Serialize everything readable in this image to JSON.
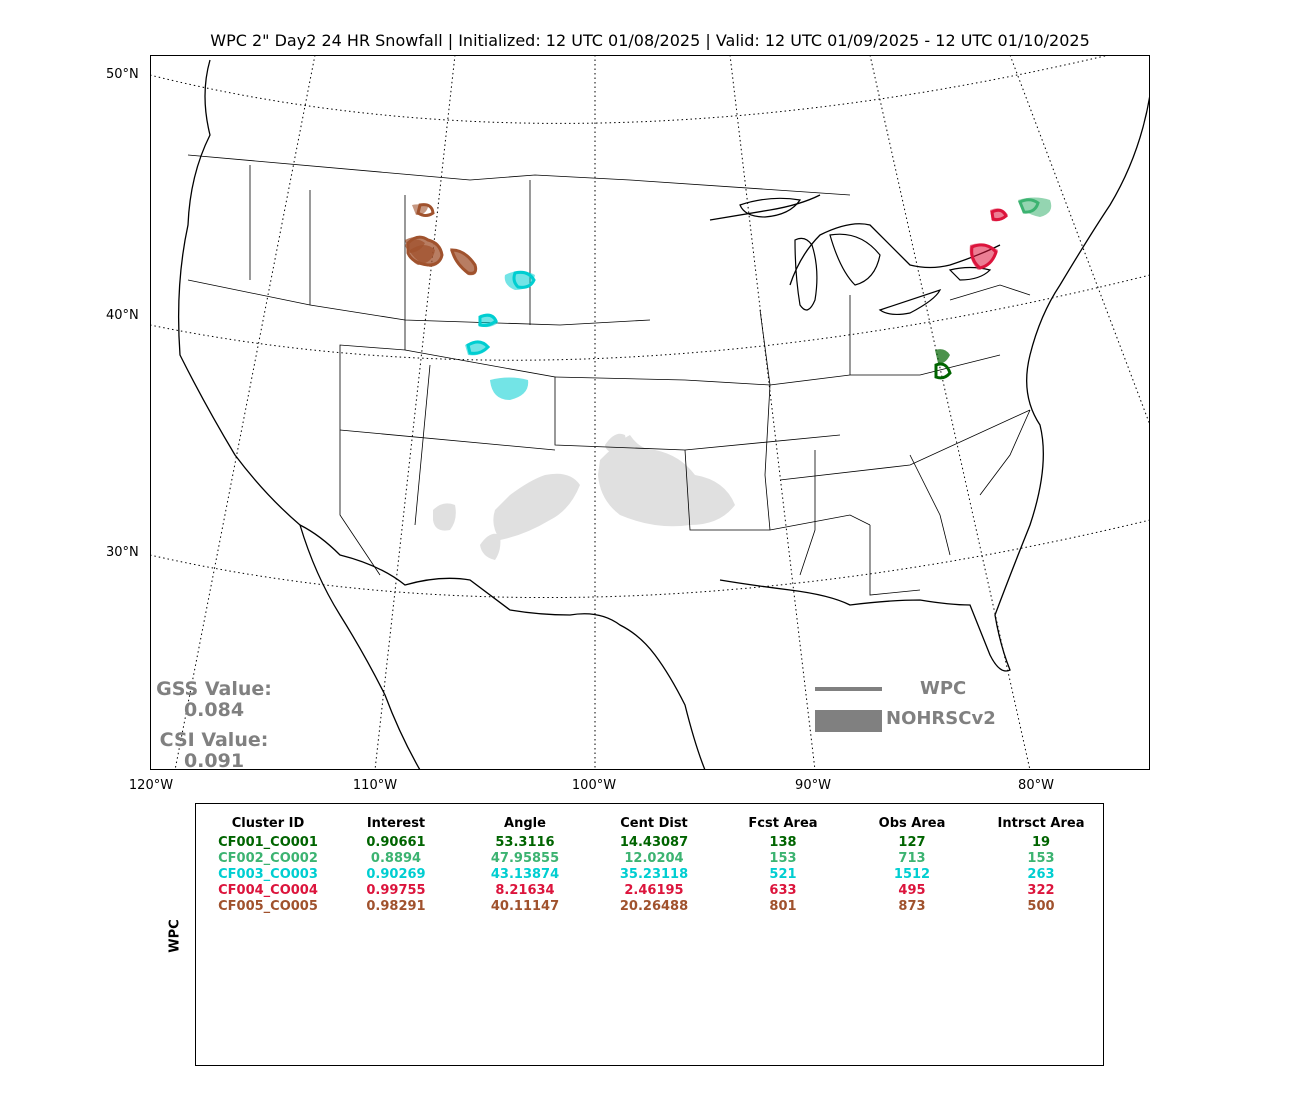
{
  "title": "WPC 2\" Day2 24 HR Snowfall | Initialized: 12 UTC 01/08/2025 | Valid: 12 UTC 01/09/2025 - 12 UTC 01/10/2025",
  "lat_labels": [
    "50°N",
    "40°N",
    "30°N"
  ],
  "lon_labels": [
    "120°W",
    "110°W",
    "100°W",
    "90°W",
    "80°W"
  ],
  "gss": {
    "label": "GSS Value:",
    "value": "0.084"
  },
  "csi": {
    "label": "CSI Value:",
    "value": "0.091"
  },
  "legend": {
    "line_label": "WPC",
    "fill_label": "NOHRSCv2",
    "color": "#808080"
  },
  "colors": {
    "cluster1": "#006400",
    "cluster2": "#3cb371",
    "cluster3": "#00ced1",
    "cluster4": "#dc143c",
    "cluster5": "#a0522d",
    "background_obs": "#e0e0e0"
  },
  "table": {
    "ylabel": "WPC",
    "headers": [
      "Cluster ID",
      "Interest",
      "Angle",
      "Cent Dist",
      "Fcst Area",
      "Obs Area",
      "Intrsct Area"
    ],
    "rows": [
      [
        "CF001_CO001",
        "0.90661",
        "53.3116",
        "14.43087",
        "138",
        "127",
        "19"
      ],
      [
        "CF002_CO002",
        "0.8894",
        "47.95855",
        "12.0204",
        "153",
        "713",
        "153"
      ],
      [
        "CF003_CO003",
        "0.90269",
        "43.13874",
        "35.23118",
        "521",
        "1512",
        "263"
      ],
      [
        "CF004_CO004",
        "0.99755",
        "8.21634",
        "2.46195",
        "633",
        "495",
        "322"
      ],
      [
        "CF005_CO005",
        "0.98291",
        "40.11147",
        "20.26488",
        "801",
        "873",
        "500"
      ]
    ]
  }
}
